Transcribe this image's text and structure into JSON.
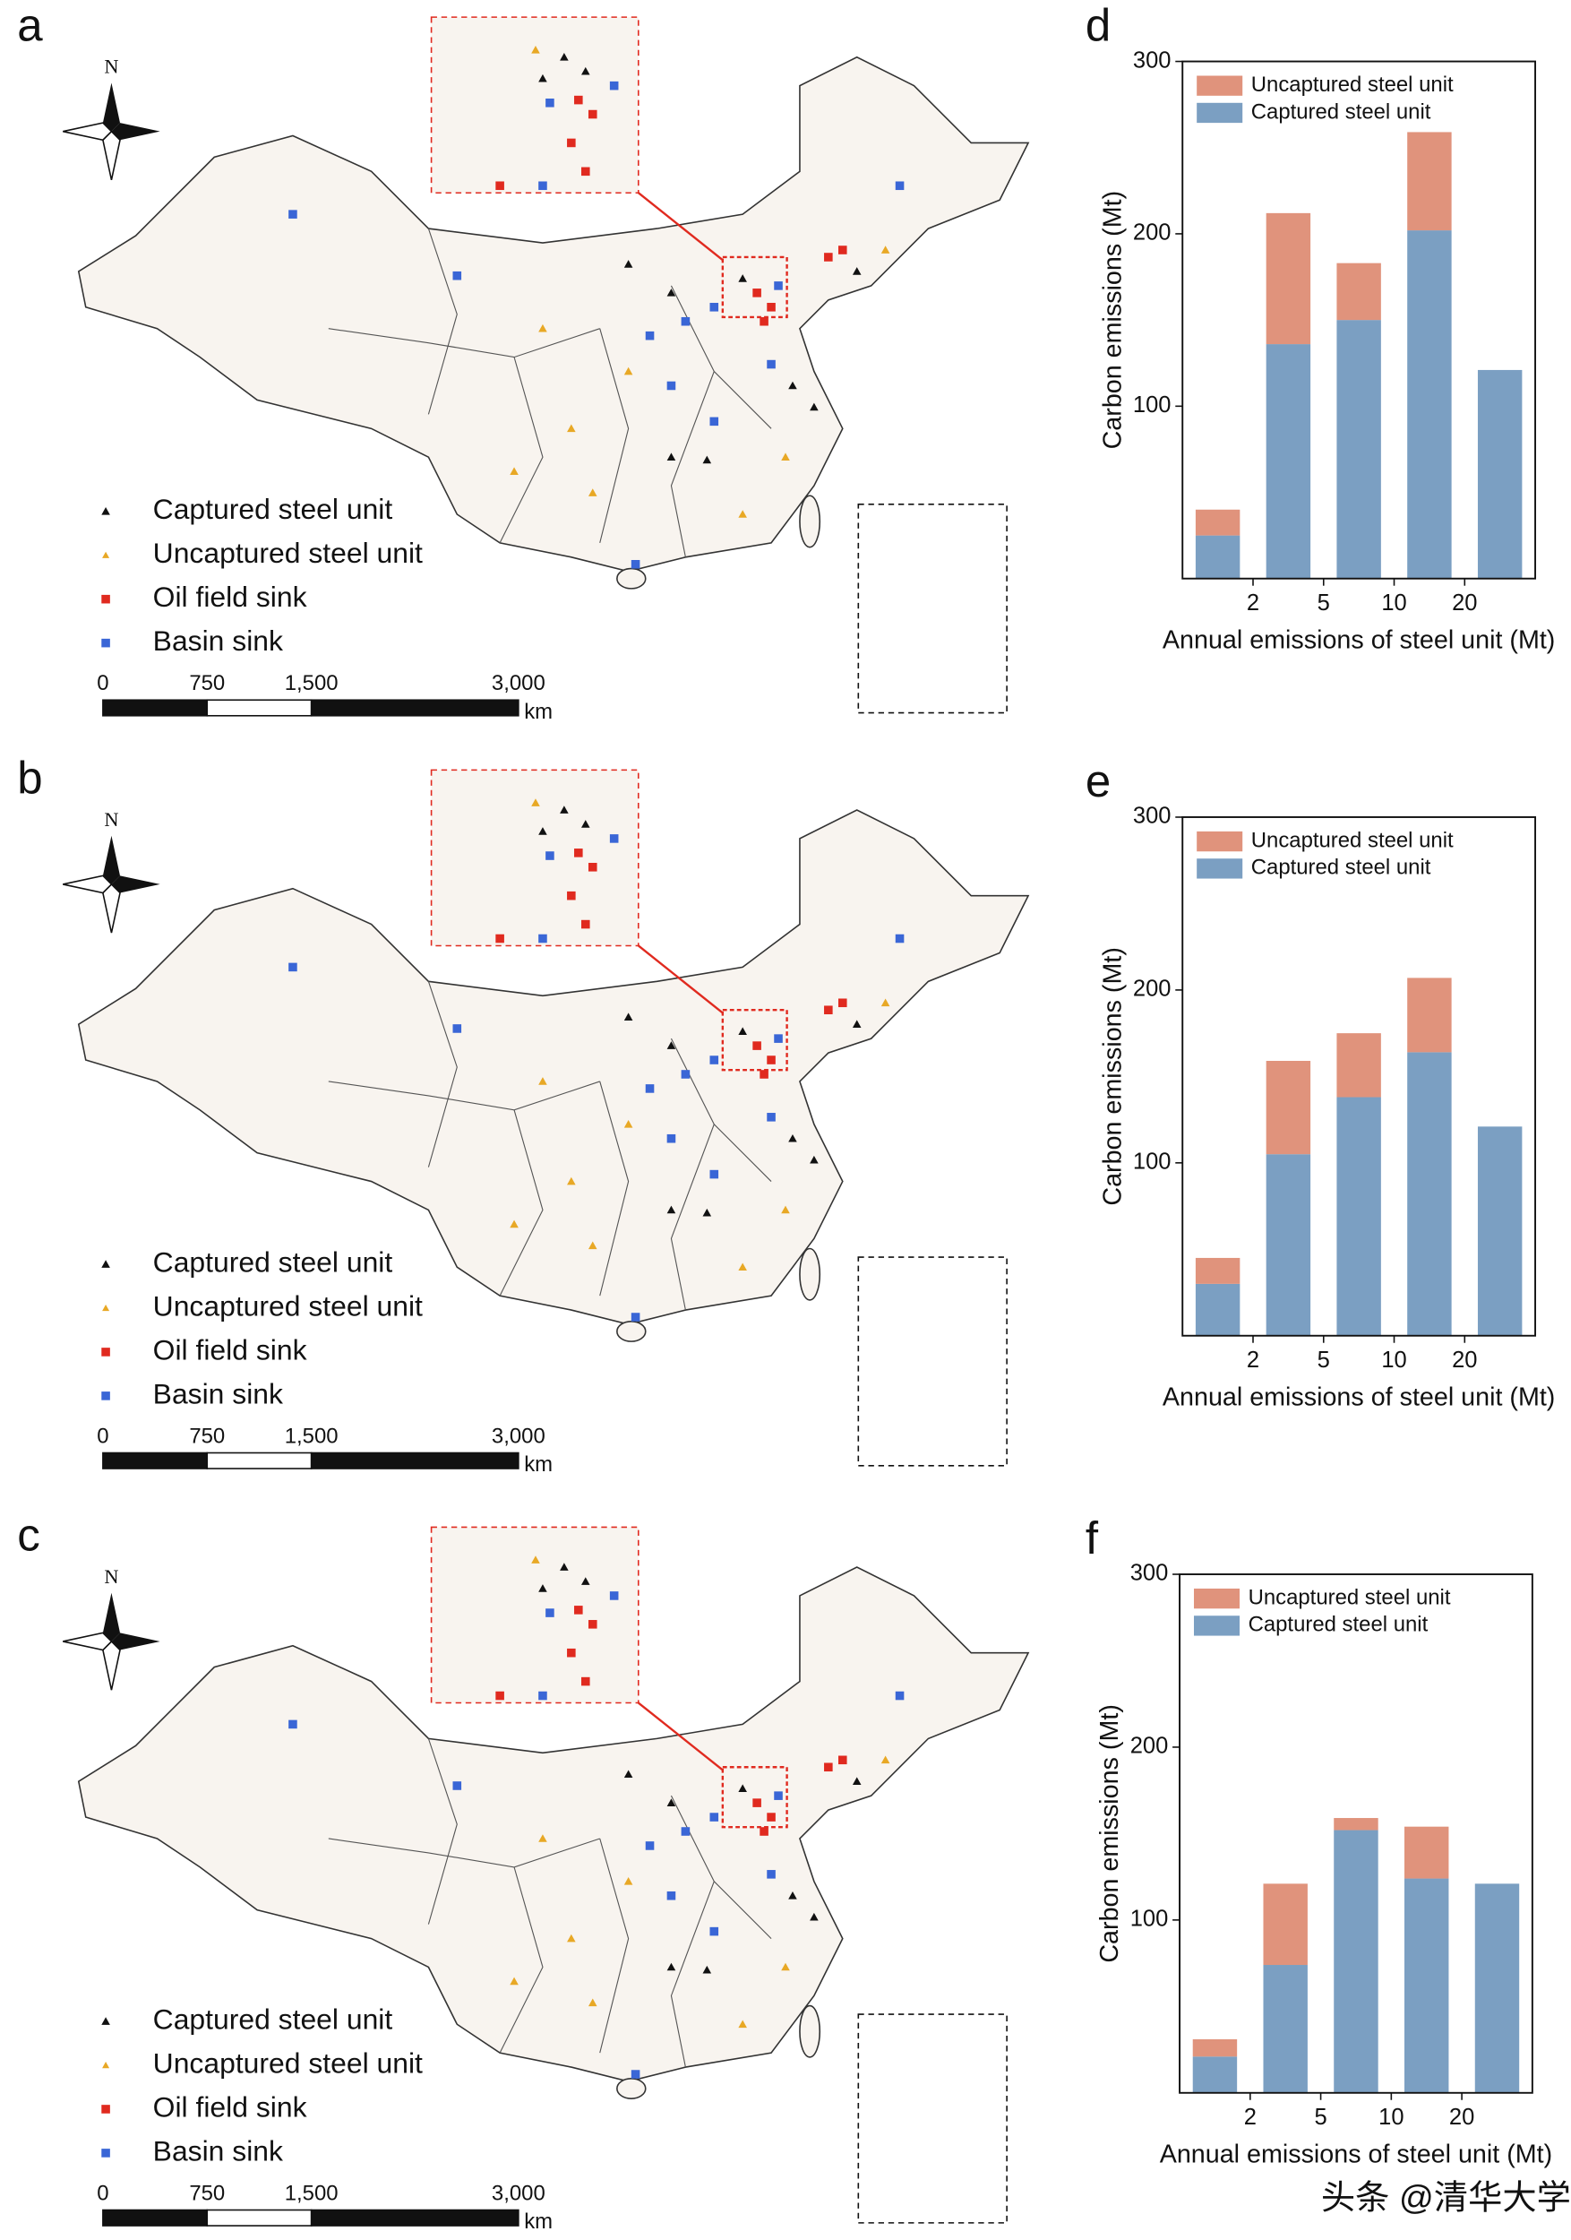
{
  "panels": [
    {
      "label": "a",
      "north": "N",
      "legend": [
        "Captured steel unit",
        "Uncaptured steel unit",
        "Oil field sink",
        "Basin sink"
      ],
      "scale_labels": [
        "0",
        "750",
        "1,500",
        "3,000"
      ],
      "scale_unit": "km"
    },
    {
      "label": "b",
      "north": "N",
      "legend": [
        "Captured steel unit",
        "Uncaptured steel unit",
        "Oil field sink",
        "Basin sink"
      ],
      "scale_labels": [
        "0",
        "750",
        "1,500",
        "3,000"
      ],
      "scale_unit": "km"
    },
    {
      "label": "c",
      "north": "N",
      "legend": [
        "Captured steel unit",
        "Uncaptured steel unit",
        "Oil field sink",
        "Basin sink"
      ],
      "scale_labels": [
        "0",
        "750",
        "1,500",
        "3,000"
      ],
      "scale_unit": "km"
    }
  ],
  "chart_data": [
    {
      "type": "bar",
      "label": "d",
      "stacked": true,
      "ylabel": "Carbon emissions (Mt)",
      "xlabel": "Annual emissions of steel unit (Mt)",
      "categories": [
        null,
        null,
        null,
        null,
        null
      ],
      "xticks": [
        2,
        5,
        10,
        20
      ],
      "ylim": [
        0,
        300
      ],
      "yticks": [
        100,
        200,
        300
      ],
      "legend": "upper left",
      "series": [
        {
          "name": "Captured steel unit",
          "color": "#7b9fc2",
          "values": [
            25,
            136,
            150,
            202,
            121
          ]
        },
        {
          "name": "Uncaptured steel unit",
          "color": "#e0937c",
          "values": [
            15,
            76,
            33,
            57,
            0
          ]
        }
      ]
    },
    {
      "type": "bar",
      "label": "e",
      "stacked": true,
      "ylabel": "Carbon emissions (Mt)",
      "xlabel": "Annual emissions of steel unit (Mt)",
      "categories": [
        null,
        null,
        null,
        null,
        null
      ],
      "xticks": [
        2,
        5,
        10,
        20
      ],
      "ylim": [
        0,
        300
      ],
      "yticks": [
        100,
        200,
        300
      ],
      "legend": "upper left",
      "series": [
        {
          "name": "Captured steel unit",
          "color": "#7b9fc2",
          "values": [
            30,
            105,
            138,
            164,
            121
          ]
        },
        {
          "name": "Uncaptured steel unit",
          "color": "#e0937c",
          "values": [
            15,
            54,
            37,
            43,
            0
          ]
        }
      ]
    },
    {
      "type": "bar",
      "label": "f",
      "stacked": true,
      "ylabel": "Carbon emissions (Mt)",
      "xlabel": "Annual emissions of steel unit (Mt)",
      "categories": [
        null,
        null,
        null,
        null,
        null
      ],
      "xticks": [
        2,
        5,
        10,
        20
      ],
      "ylim": [
        0,
        300
      ],
      "yticks": [
        100,
        200,
        300
      ],
      "legend": "upper left",
      "series": [
        {
          "name": "Captured steel unit",
          "color": "#7b9fc2",
          "values": [
            21,
            74,
            152,
            124,
            121
          ]
        },
        {
          "name": "Uncaptured steel unit",
          "color": "#e0937c",
          "values": [
            10,
            47,
            7,
            30,
            0
          ]
        }
      ]
    }
  ],
  "watermark": "头条 @清华大学"
}
